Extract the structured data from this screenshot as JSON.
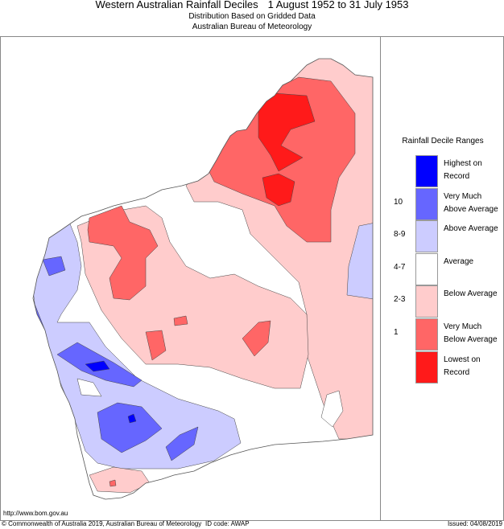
{
  "header": {
    "title": "Western Australian Rainfall Deciles",
    "period": "1 August 1952 to 31 July 1953",
    "subtitle1": "Distribution Based on Gridded Data",
    "subtitle2": "Australian Bureau of Meteorology"
  },
  "legend": {
    "title": "Rainfall Decile Ranges",
    "items": [
      {
        "label": "Highest on Record",
        "decile": "",
        "color": "#0000ff"
      },
      {
        "label": "Very Much Above Average",
        "decile": "10",
        "color": "#6666ff"
      },
      {
        "label": "Above Average",
        "decile": "8-9",
        "color": "#ccccff"
      },
      {
        "label": "Average",
        "decile": "4-7",
        "color": "#ffffff"
      },
      {
        "label": "Below Average",
        "decile": "2-3",
        "color": "#ffcccc"
      },
      {
        "label": "Very Much Below Average",
        "decile": "1",
        "color": "#ff6666"
      },
      {
        "label": "Lowest on Record",
        "decile": "",
        "color": "#ff1a1a"
      }
    ]
  },
  "footer": {
    "url": "http://www.bom.gov.au",
    "copyright": "© Commonwealth of Australia 2019, Australian Bureau of Meteorology",
    "id_code": "ID code: AWAP",
    "issued": "Issued: 04/08/2019"
  }
}
